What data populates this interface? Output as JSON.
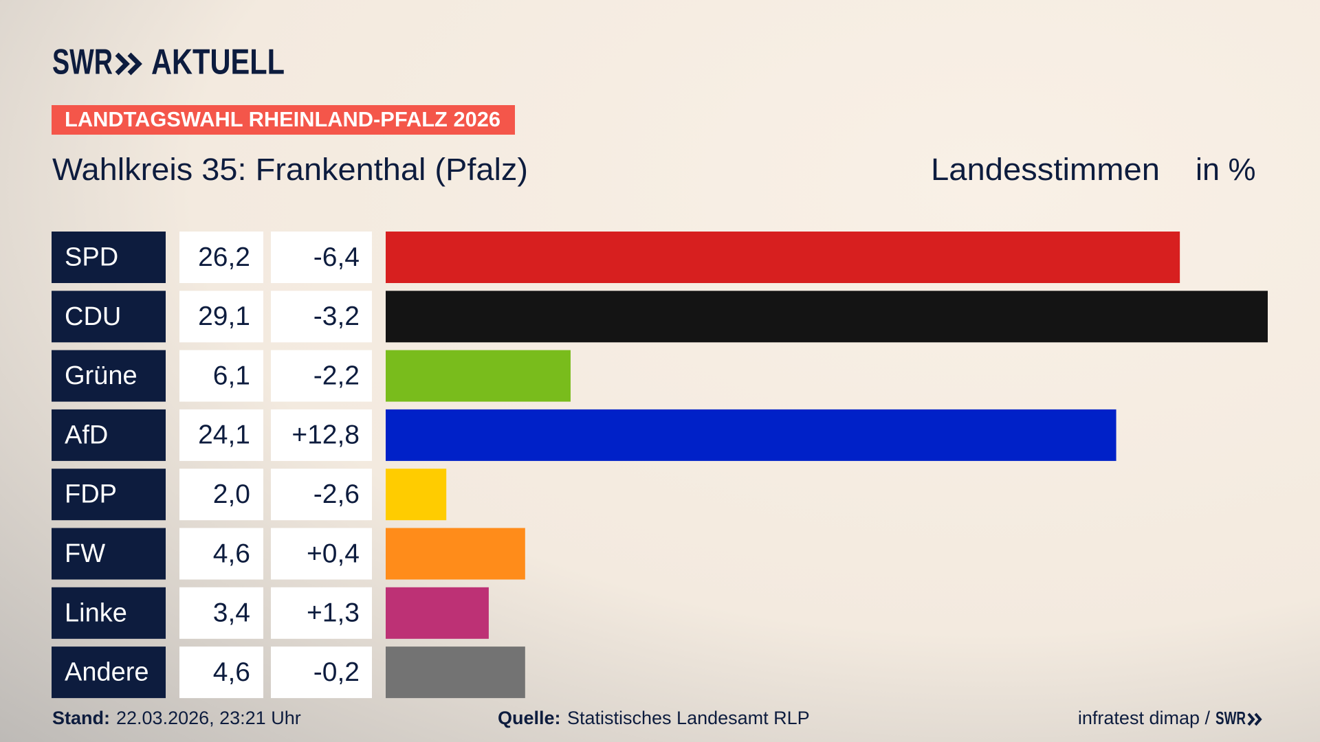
{
  "header": {
    "logo": "SWR",
    "logo_text": "AKTUELL",
    "banner": "LANDTAGSWAHL RHEINLAND-PFALZ 2026"
  },
  "chart_data": {
    "type": "bar",
    "orientation": "horizontal",
    "title": "Wahlkreis 35: Frankenthal (Pfalz)",
    "value_header": "Landesstimmen",
    "unit_label": "in %",
    "categories": [
      "SPD",
      "CDU",
      "Grüne",
      "AfD",
      "FDP",
      "FW",
      "Linke",
      "Andere"
    ],
    "values": [
      26.2,
      29.1,
      6.1,
      24.1,
      2.0,
      4.6,
      3.4,
      4.6
    ],
    "value_labels": [
      "26,2",
      "29,1",
      "6,1",
      "24,1",
      "2,0",
      "4,6",
      "3,4",
      "4,6"
    ],
    "changes": [
      "-6,4",
      "-3,2",
      "-2,2",
      "+12,8",
      "-2,6",
      "+0,4",
      "+1,3",
      "-0,2"
    ],
    "colors": [
      "#d71f1f",
      "#141414",
      "#79bc1c",
      "#0021c8",
      "#ffcc00",
      "#ff8c1a",
      "#bd3175",
      "#737373"
    ]
  },
  "footer": {
    "stand_label": "Stand:",
    "stand": "22.03.2026, 23:21 Uhr",
    "source_label": "Quelle:",
    "source": "Statistisches Landesamt RLP",
    "credit": "infratest dimap /",
    "credit_logo": "SWR"
  }
}
